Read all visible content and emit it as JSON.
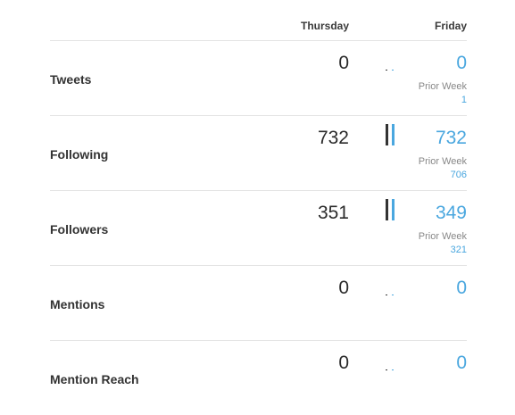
{
  "header": {
    "col_a": "Thursday",
    "col_b": "Friday"
  },
  "rows": [
    {
      "label": "Tweets",
      "value_a": "0",
      "value_b": "0",
      "prior_label": "Prior Week",
      "prior_value": "1",
      "spark": {
        "a": 0,
        "b": 0
      }
    },
    {
      "label": "Following",
      "value_a": "732",
      "value_b": "732",
      "prior_label": "Prior Week",
      "prior_value": "706",
      "spark": {
        "a": 732,
        "b": 732
      }
    },
    {
      "label": "Followers",
      "value_a": "351",
      "value_b": "349",
      "prior_label": "Prior Week",
      "prior_value": "321",
      "spark": {
        "a": 351,
        "b": 349
      }
    },
    {
      "label": "Mentions",
      "value_a": "0",
      "value_b": "0",
      "spark": {
        "a": 0,
        "b": 0
      }
    },
    {
      "label": "Mention Reach",
      "value_a": "0",
      "value_b": "0",
      "spark": {
        "a": 0,
        "b": 0
      }
    }
  ],
  "colors": {
    "accent": "#4aa7df",
    "dark": "#333333",
    "divider": "#e4e4e4"
  }
}
